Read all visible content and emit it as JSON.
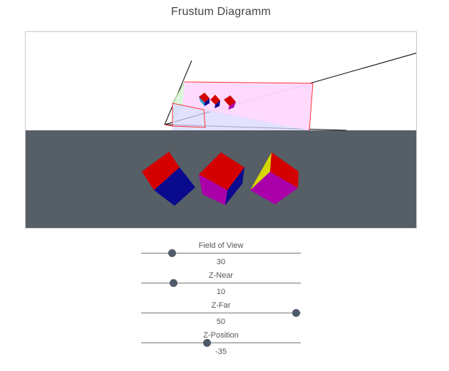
{
  "title": "Frustum Diagramm",
  "colors": {
    "ground": "#565e66",
    "cube_red": "#d40000",
    "cube_blue": "#0a0a8f",
    "cube_magenta": "#aa00aa",
    "cube_yellow": "#d6d600",
    "frustum_fill": "#ffd8ff",
    "frustum_edge": "#ff3333",
    "slider_thumb": "#4f5a68"
  },
  "controls": [
    {
      "label": "Field of View",
      "value": "30",
      "min": 10,
      "max": 120,
      "position": 0.19
    },
    {
      "label": "Z-Near",
      "value": "10",
      "min": 0,
      "max": 50,
      "position": 0.2
    },
    {
      "label": "Z-Far",
      "value": "50",
      "min": 0,
      "max": 50,
      "position": 0.98
    },
    {
      "label": "Z-Position",
      "value": "-35",
      "min": -100,
      "max": 0,
      "position": 0.41
    }
  ]
}
